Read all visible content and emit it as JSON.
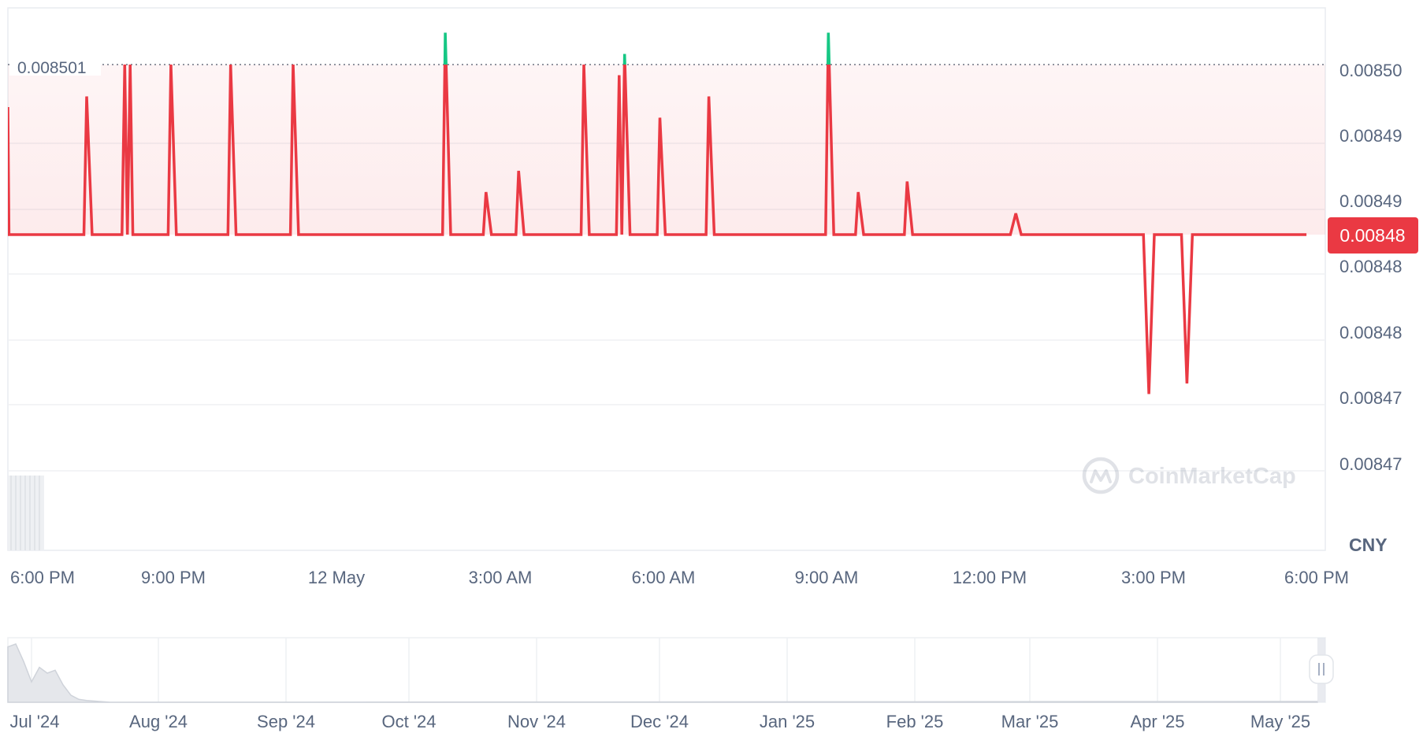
{
  "chart_data": {
    "type": "line",
    "currency": "CNY",
    "watermark": "CoinMarketCap",
    "reference_line_label": "0.008501",
    "current_price_label": "0.00848",
    "y_tick_labels": [
      "0.00850",
      "0.00849",
      "0.00849",
      "0.00848",
      "0.00848",
      "0.00847",
      "0.00847"
    ],
    "x_tick_labels": [
      "6:00 PM",
      "9:00 PM",
      "12 May",
      "3:00 AM",
      "6:00 AM",
      "9:00 AM",
      "12:00 PM",
      "3:00 PM",
      "6:00 PM"
    ],
    "navigator_labels": [
      "Jul '24",
      "Aug '24",
      "Sep '24",
      "Oct '24",
      "Nov '24",
      "Dec '24",
      "Jan '25",
      "Feb '25",
      "Mar '25",
      "Apr '25",
      "May '25"
    ],
    "x_unit": "hours since start of shown 24h window (6:00 PM)",
    "ylim": [
      0.008468,
      0.008506
    ],
    "reference_value": 0.008501,
    "baseline_value": 0.008485,
    "series": [
      {
        "color_below": "#ea3943",
        "color_above": "#16c784",
        "values_x": [
          0.0,
          0.02,
          1.4,
          1.45,
          1.55,
          2.1,
          2.15,
          2.2,
          2.25,
          2.3,
          2.4,
          2.95,
          3.0,
          3.1,
          4.05,
          4.1,
          4.2,
          5.2,
          5.25,
          5.35,
          8.0,
          8.05,
          8.15,
          8.75,
          8.8,
          8.9,
          9.35,
          9.4,
          9.5,
          10.55,
          10.6,
          10.7,
          11.2,
          11.25,
          11.3,
          11.35,
          11.45,
          11.95,
          12.0,
          12.1,
          12.85,
          12.9,
          13.0,
          15.05,
          15.1,
          15.2,
          15.6,
          15.65,
          15.75,
          16.5,
          16.55,
          16.65,
          18.45,
          18.55,
          18.65,
          20.9,
          21.0,
          21.1,
          21.6,
          21.7,
          21.8,
          23.9
        ],
        "values_y": [
          0.008497,
          0.008485,
          0.008485,
          0.008498,
          0.008485,
          0.008485,
          0.008501,
          0.008485,
          0.008501,
          0.008485,
          0.008485,
          0.008485,
          0.008501,
          0.008485,
          0.008485,
          0.008501,
          0.008485,
          0.008485,
          0.008501,
          0.008485,
          0.008485,
          0.008504,
          0.008485,
          0.008485,
          0.008489,
          0.008485,
          0.008485,
          0.008491,
          0.008485,
          0.008485,
          0.008501,
          0.008485,
          0.008485,
          0.0085,
          0.008485,
          0.008502,
          0.008485,
          0.008485,
          0.008496,
          0.008485,
          0.008485,
          0.008498,
          0.008485,
          0.008485,
          0.008504,
          0.008485,
          0.008485,
          0.008489,
          0.008485,
          0.008485,
          0.00849,
          0.008485,
          0.008485,
          0.008487,
          0.008485,
          0.008485,
          0.00847,
          0.008485,
          0.008485,
          0.008471,
          0.008485,
          0.008485
        ]
      }
    ],
    "navigator_series_shape": [
      0.95,
      1.0,
      0.7,
      0.35,
      0.6,
      0.5,
      0.55,
      0.3,
      0.12,
      0.05,
      0.03,
      0.02,
      0.01,
      0.0
    ],
    "grid": true
  }
}
